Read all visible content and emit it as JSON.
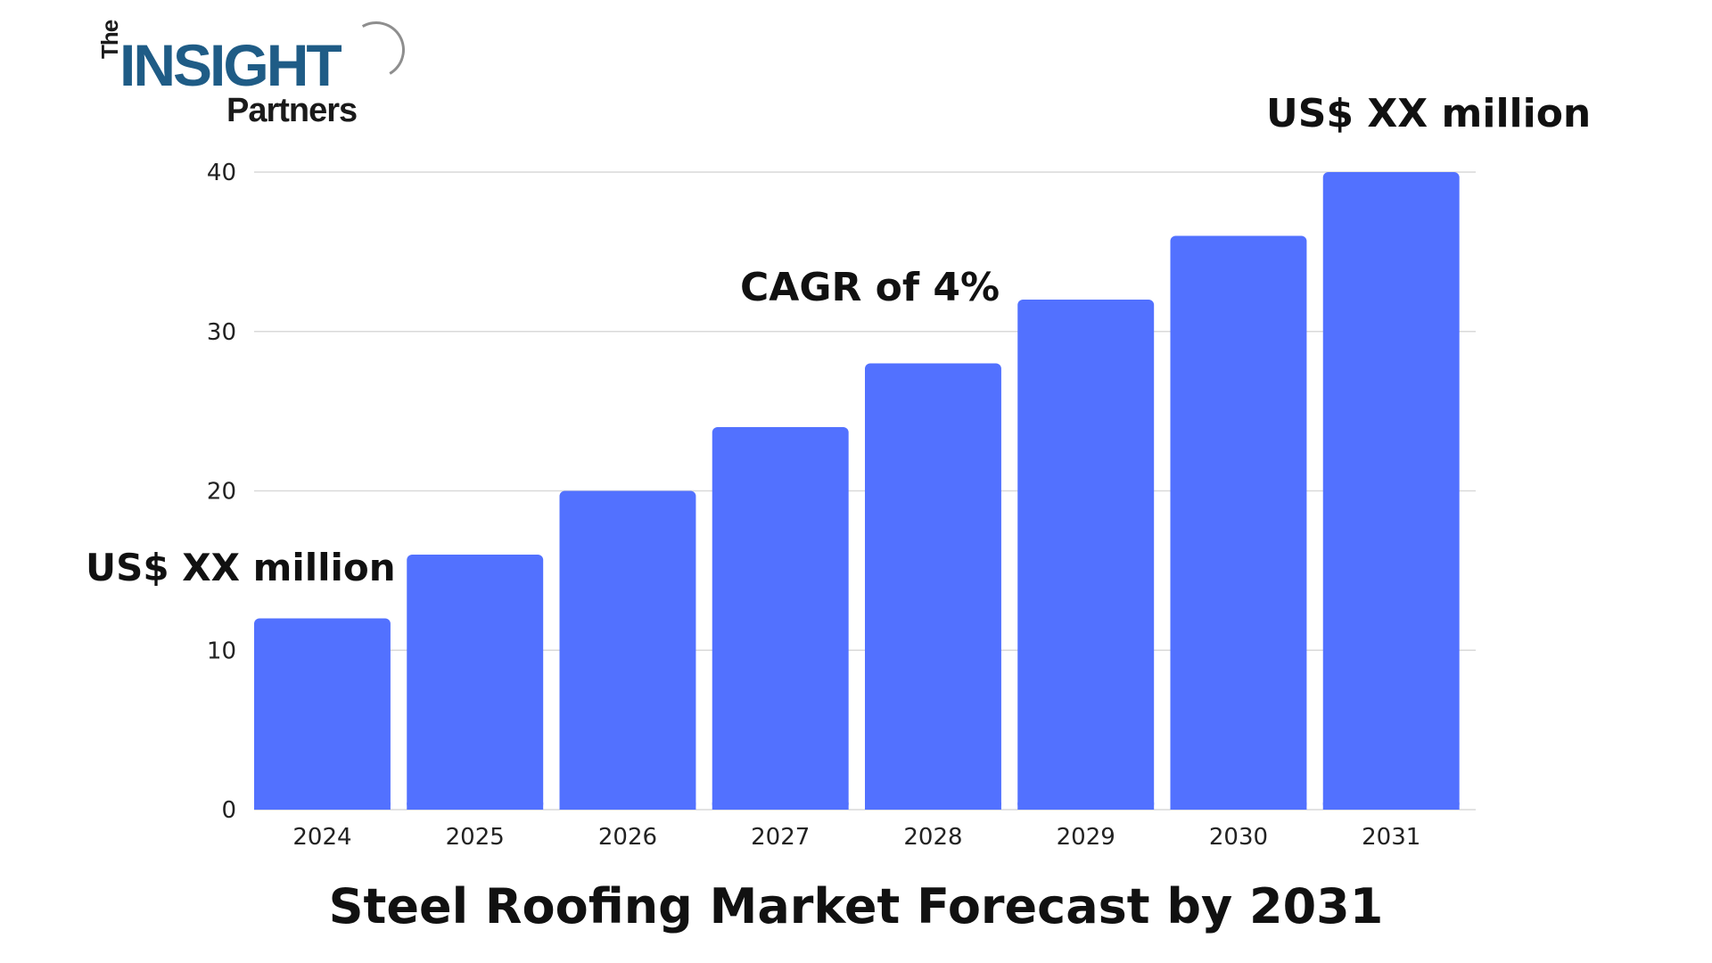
{
  "logo": {
    "the": "The",
    "insight": "INSIGHT",
    "partners": "Partners"
  },
  "annotations": {
    "start": "US$ XX million",
    "cagr": "CAGR of 4%",
    "end": "US$ XX million"
  },
  "chart_data": {
    "type": "bar",
    "title": "Steel Roofing Market Forecast by 2031",
    "xlabel": "",
    "ylabel": "",
    "categories": [
      "2024",
      "2025",
      "2026",
      "2027",
      "2028",
      "2029",
      "2030",
      "2031"
    ],
    "values": [
      12,
      16,
      20,
      24,
      28,
      32,
      36,
      40
    ],
    "ylim": [
      0,
      40
    ],
    "yticks": [
      0,
      10,
      20,
      30,
      40
    ],
    "grid": true,
    "legend": "none",
    "colors": {
      "bar": "#5271ff",
      "grid": "#d9d9d9",
      "text": "#111111"
    }
  }
}
